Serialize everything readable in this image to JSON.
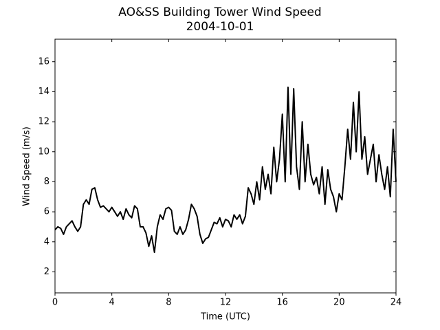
{
  "chart_data": {
    "type": "line",
    "title": "AO&SS Building Tower Wind Speed",
    "subtitle": "2004-10-01",
    "x_label": "Time (UTC)",
    "y_label": "Wind Speed (m/s)",
    "x": [
      0,
      0.2,
      0.4,
      0.6,
      0.8,
      1,
      1.2,
      1.4,
      1.6,
      1.8,
      2,
      2.2,
      2.4,
      2.6,
      2.8,
      3,
      3.2,
      3.4,
      3.6,
      3.8,
      4,
      4.2,
      4.4,
      4.6,
      4.8,
      5,
      5.2,
      5.4,
      5.6,
      5.8,
      6,
      6.2,
      6.4,
      6.6,
      6.8,
      7,
      7.2,
      7.4,
      7.6,
      7.8,
      8,
      8.2,
      8.4,
      8.6,
      8.8,
      9,
      9.2,
      9.4,
      9.6,
      9.8,
      10,
      10.2,
      10.4,
      10.6,
      10.8,
      11,
      11.2,
      11.4,
      11.6,
      11.8,
      12,
      12.2,
      12.4,
      12.6,
      12.8,
      13,
      13.2,
      13.4,
      13.6,
      13.8,
      14,
      14.2,
      14.4,
      14.6,
      14.8,
      15,
      15.2,
      15.4,
      15.6,
      15.8,
      16,
      16.2,
      16.4,
      16.6,
      16.8,
      17,
      17.2,
      17.4,
      17.6,
      17.8,
      18,
      18.2,
      18.4,
      18.6,
      18.8,
      19,
      19.2,
      19.4,
      19.6,
      19.8,
      20,
      20.2,
      20.4,
      20.6,
      20.8,
      21,
      21.2,
      21.4,
      21.6,
      21.8,
      22,
      22.2,
      22.4,
      22.6,
      22.8,
      23,
      23.2,
      23.4,
      23.6,
      23.8,
      24
    ],
    "series": [
      {
        "name": "Wind Speed",
        "color": "#000000",
        "values": [
          4.8,
          5.0,
          4.9,
          4.5,
          5.0,
          5.2,
          5.4,
          5.0,
          4.7,
          5.0,
          6.5,
          6.8,
          6.5,
          7.5,
          7.6,
          6.8,
          6.3,
          6.4,
          6.2,
          6.0,
          6.3,
          6.0,
          5.7,
          6.0,
          5.5,
          6.2,
          5.8,
          5.6,
          6.4,
          6.2,
          5.0,
          5.0,
          4.6,
          3.7,
          4.4,
          3.3,
          5.0,
          5.8,
          5.5,
          6.2,
          6.3,
          6.1,
          4.7,
          4.5,
          5.0,
          4.5,
          4.8,
          5.5,
          6.5,
          6.2,
          5.7,
          4.5,
          3.9,
          4.2,
          4.3,
          4.8,
          5.3,
          5.2,
          5.6,
          5.0,
          5.5,
          5.4,
          5.0,
          5.8,
          5.5,
          5.8,
          5.2,
          5.7,
          7.6,
          7.2,
          6.5,
          8.0,
          6.8,
          9.0,
          7.5,
          8.5,
          7.2,
          10.3,
          8.0,
          9.5,
          12.5,
          8.0,
          14.3,
          8.5,
          14.2,
          9.0,
          7.5,
          12.0,
          8.0,
          10.5,
          8.5,
          7.8,
          8.3,
          7.2,
          9.0,
          6.5,
          8.8,
          7.5,
          7.0,
          6.0,
          7.2,
          6.8,
          9.0,
          11.5,
          9.5,
          13.3,
          10.0,
          14.0,
          9.5,
          11.0,
          8.5,
          9.5,
          10.5,
          8.0,
          9.8,
          8.5,
          7.5,
          9.0,
          7.0,
          11.5,
          8.0
        ]
      }
    ],
    "xlim": [
      0,
      24
    ],
    "xticks": [
      0,
      4,
      8,
      12,
      16,
      20,
      24
    ],
    "ylim": [
      0.6,
      17.5
    ],
    "yticks": [
      2,
      4,
      6,
      8,
      10,
      12,
      14,
      16
    ],
    "grid": false
  }
}
